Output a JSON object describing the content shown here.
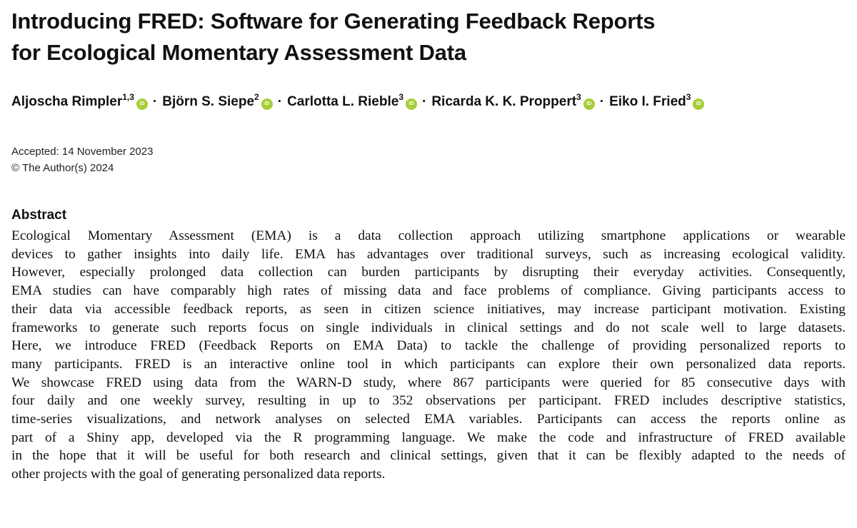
{
  "title": {
    "line1": "Introducing FRED: Software for Generating Feedback Reports",
    "line2": "for Ecological Momentary Assessment Data"
  },
  "authors": [
    {
      "name": "Aljoscha Rimpler",
      "affil": "1,3"
    },
    {
      "name": "Björn S. Siepe",
      "affil": "2"
    },
    {
      "name": "Carlotta L. Rieble",
      "affil": "3"
    },
    {
      "name": "Ricarda K. K. Proppert",
      "affil": "3"
    },
    {
      "name": "Eiko I. Fried",
      "affil": "3"
    }
  ],
  "author_separator": "·",
  "orcid_label": "iD",
  "orcid_color": "#a6ce39",
  "meta": {
    "accepted": "Accepted: 14 November 2023",
    "copyright": "© The Author(s) 2024"
  },
  "abstract": {
    "heading": "Abstract",
    "lines": [
      "Ecological Momentary Assessment (EMA) is a data collection approach utilizing smartphone applications or wearable",
      "devices to gather insights into daily life. EMA has advantages over traditional surveys, such as increasing ecological validity.",
      "However, especially prolonged data collection can burden participants by disrupting their everyday activities. Consequently,",
      "EMA studies can have comparably high rates of missing data and face problems of compliance. Giving participants access to",
      "their data via accessible feedback reports, as seen in citizen science initiatives, may increase participant motivation. Existing",
      "frameworks to generate such reports focus on single individuals in clinical settings and do not scale well to large datasets.",
      "Here, we introduce FRED (Feedback Reports on EMA Data) to tackle the challenge of providing personalized reports to",
      "many participants. FRED is an interactive online tool in which participants can explore their own personalized data reports.",
      "We showcase FRED using data from the WARN-D study, where 867 participants were queried for 85 consecutive days with",
      "four daily and one weekly survey, resulting in up to 352 observations per participant. FRED includes descriptive statistics,",
      "time-series visualizations, and network analyses on selected EMA variables. Participants can access the reports online as",
      "part of a Shiny app, developed via the R programming language. We make the code and infrastructure of FRED available",
      "in the hope that it will be useful for both research and clinical settings, given that it can be flexibly adapted to the needs of",
      "other projects with the goal of generating personalized data reports."
    ]
  }
}
